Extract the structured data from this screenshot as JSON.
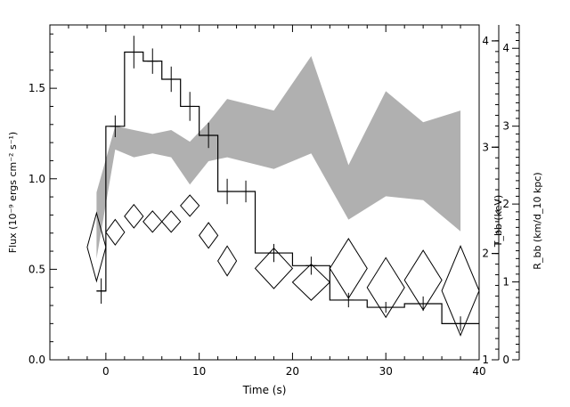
{
  "chart_data": {
    "type": "line",
    "xlabel": "Time (s)",
    "ylabel_left": "Flux (10⁻⁹ ergs cm⁻² s⁻¹)",
    "ylabel_right_1": "T_bb (keV)",
    "ylabel_right_2": "R_bb (km/d_10 kpc)",
    "xlim": [
      -6,
      40
    ],
    "x_ticks": [
      0,
      10,
      20,
      30,
      40
    ],
    "ylim_flux": [
      0,
      1.85
    ],
    "flux_ticks": [
      "0.0",
      "0.5",
      "1.0",
      "1.5"
    ],
    "ylim_kT": [
      1,
      4.15
    ],
    "kT_ticks": [
      "1",
      "2",
      "3",
      "4"
    ],
    "ylim_R": [
      0,
      4.3
    ],
    "R_ticks": [
      "0",
      "1",
      "2",
      "3",
      "4"
    ],
    "series": [
      {
        "role": "flux",
        "style": "histogram with error bars",
        "color": "#000000",
        "bins": [
          {
            "x0": -1,
            "x1": 0,
            "y": 0.38,
            "err": 0.07
          },
          {
            "x0": 0,
            "x1": 2,
            "y": 1.29,
            "err": 0.06
          },
          {
            "x0": 2,
            "x1": 4,
            "y": 1.7,
            "err": 0.09
          },
          {
            "x0": 4,
            "x1": 6,
            "y": 1.65,
            "err": 0.07
          },
          {
            "x0": 6,
            "x1": 8,
            "y": 1.55,
            "err": 0.07
          },
          {
            "x0": 8,
            "x1": 10,
            "y": 1.4,
            "err": 0.08
          },
          {
            "x0": 10,
            "x1": 12,
            "y": 1.24,
            "err": 0.07
          },
          {
            "x0": 12,
            "x1": 14,
            "y": 0.93,
            "err": 0.07
          },
          {
            "x0": 14,
            "x1": 16,
            "y": 0.93,
            "err": 0.06
          },
          {
            "x0": 16,
            "x1": 20,
            "y": 0.59,
            "err": 0.05
          },
          {
            "x0": 20,
            "x1": 24,
            "y": 0.52,
            "err": 0.05
          },
          {
            "x0": 24,
            "x1": 28,
            "y": 0.33,
            "err": 0.04
          },
          {
            "x0": 28,
            "x1": 32,
            "y": 0.29,
            "err": 0.03
          },
          {
            "x0": 32,
            "x1": 36,
            "y": 0.31,
            "err": 0.04
          },
          {
            "x0": 36,
            "x1": 40,
            "y": 0.2,
            "err": 0.04
          }
        ]
      },
      {
        "role": "kT",
        "style": "diamonds",
        "color": "#000000",
        "points": [
          {
            "x": -1,
            "dx": 1,
            "y": 2.06,
            "dy": 0.32
          },
          {
            "x": 1,
            "dx": 1,
            "y": 2.2,
            "dy": 0.12
          },
          {
            "x": 3,
            "dx": 1,
            "y": 2.35,
            "dy": 0.11
          },
          {
            "x": 5,
            "dx": 1,
            "y": 2.3,
            "dy": 0.1
          },
          {
            "x": 7,
            "dx": 1,
            "y": 2.3,
            "dy": 0.1
          },
          {
            "x": 9,
            "dx": 1,
            "y": 2.45,
            "dy": 0.1
          },
          {
            "x": 11,
            "dx": 1,
            "y": 2.17,
            "dy": 0.12
          },
          {
            "x": 13,
            "dx": 1,
            "y": 1.93,
            "dy": 0.14
          },
          {
            "x": 18,
            "dx": 2,
            "y": 1.86,
            "dy": 0.19
          },
          {
            "x": 22,
            "dx": 2,
            "y": 1.73,
            "dy": 0.17
          },
          {
            "x": 26,
            "dx": 2,
            "y": 1.86,
            "dy": 0.28
          },
          {
            "x": 30,
            "dx": 2,
            "y": 1.68,
            "dy": 0.28
          },
          {
            "x": 34,
            "dx": 2,
            "y": 1.75,
            "dy": 0.28
          },
          {
            "x": 38,
            "dx": 2,
            "y": 1.65,
            "dy": 0.42
          }
        ]
      },
      {
        "role": "radius",
        "style": "shaded band",
        "color": "#b0b0b0",
        "x": [
          -1,
          1,
          3,
          5,
          7,
          9,
          11,
          13,
          18,
          22,
          26,
          30,
          34,
          38
        ],
        "lower": [
          1.3,
          2.7,
          2.6,
          2.65,
          2.6,
          2.25,
          2.55,
          2.6,
          2.45,
          2.65,
          1.8,
          2.1,
          2.05,
          1.65
        ],
        "upper": [
          2.15,
          3.0,
          2.95,
          2.9,
          2.95,
          2.8,
          3.05,
          3.35,
          3.2,
          3.9,
          2.5,
          3.45,
          3.05,
          3.2
        ]
      }
    ]
  }
}
